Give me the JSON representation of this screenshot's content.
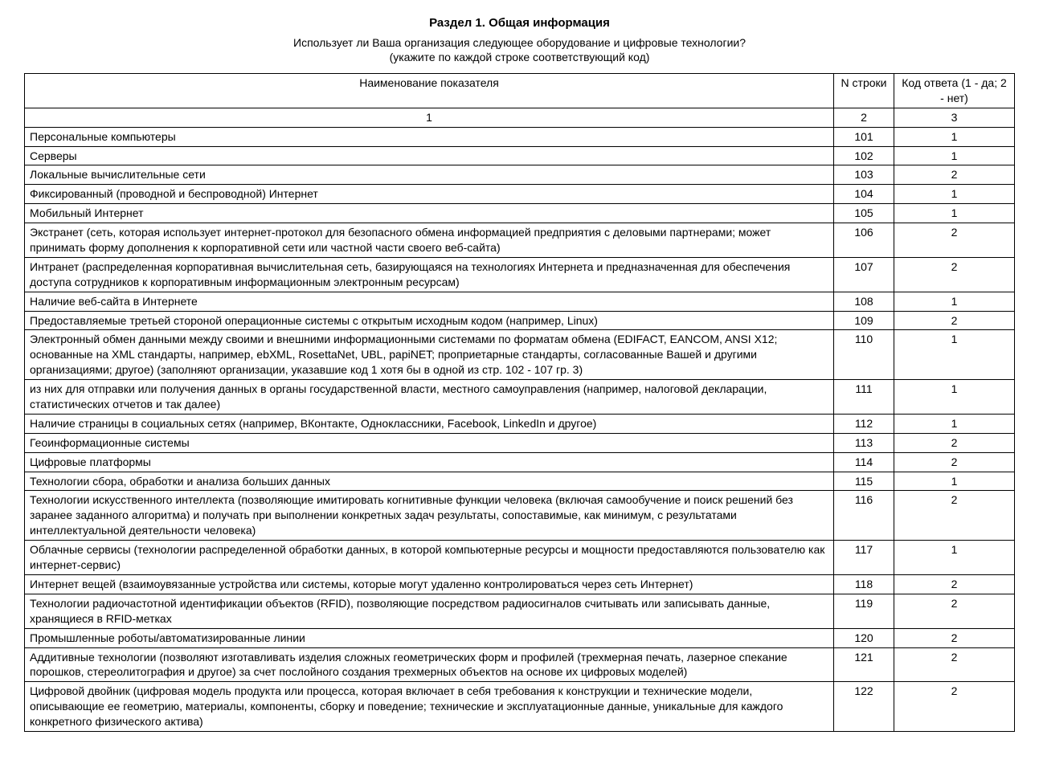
{
  "header": {
    "section_title": "Раздел 1. Общая информация",
    "question": "Использует ли Ваша организация следующее оборудование и цифровые технологии?",
    "instruction": "(укажите по каждой строке соответствующий код)"
  },
  "table": {
    "columns": {
      "name": "Наименование показателя",
      "line": "N строки",
      "code": "Код ответа (1 - да; 2 - нет)"
    },
    "number_row": {
      "name": "1",
      "line": "2",
      "code": "3"
    },
    "rows": [
      {
        "name": "Персональные компьютеры",
        "line": "101",
        "code": "1"
      },
      {
        "name": "Серверы",
        "line": "102",
        "code": "1"
      },
      {
        "name": "Локальные вычислительные сети",
        "line": "103",
        "code": "2"
      },
      {
        "name": "Фиксированный (проводной и беспроводной) Интернет",
        "line": "104",
        "code": "1"
      },
      {
        "name": "Мобильный Интернет",
        "line": "105",
        "code": "1"
      },
      {
        "name": "Экстранет (сеть, которая использует интернет-протокол для безопасного обмена информацией предприятия с деловыми партнерами; может принимать форму дополнения к корпоративной сети или частной части своего веб-сайта)",
        "line": "106",
        "code": "2"
      },
      {
        "name": "Интранет (распределенная корпоративная вычислительная сеть, базирующаяся на технологиях Интернета и предназначенная для обеспечения доступа сотрудников к корпоративным информационным электронным ресурсам)",
        "line": "107",
        "code": "2"
      },
      {
        "name": "Наличие веб-сайта в Интернете",
        "line": "108",
        "code": "1"
      },
      {
        "name": "Предоставляемые третьей стороной операционные системы с открытым исходным кодом (например, Linux)",
        "line": "109",
        "code": "2"
      },
      {
        "name": "Электронный обмен данными между своими и внешними информационными системами по форматам обмена (EDIFACT, EANCOM, ANSI X12; основанные на XML стандарты, например, ebXML, RosettaNet, UBL, papiNET; проприетарные стандарты, согласованные Вашей и другими организациями; другое) (заполняют организации, указавшие код 1 хотя бы в одной из стр. 102 - 107 гр. 3)",
        "line": "110",
        "code": "1"
      },
      {
        "name": "из них для отправки или получения данных в органы государственной власти, местного самоуправления (например, налоговой декларации, статистических отчетов и так далее)",
        "line": "111",
        "code": "1"
      },
      {
        "name": "Наличие страницы в социальных сетях (например, ВКонтакте, Одноклассники, Facebook, LinkedIn и другое)",
        "line": "112",
        "code": "1"
      },
      {
        "name": "Геоинформационные системы",
        "line": "113",
        "code": "2"
      },
      {
        "name": "Цифровые платформы",
        "line": "114",
        "code": "2"
      },
      {
        "name": "Технологии сбора, обработки и анализа больших данных",
        "line": "115",
        "code": "1"
      },
      {
        "name": "Технологии искусственного интеллекта (позволяющие имитировать когнитивные функции человека (включая самообучение и поиск решений без заранее заданного алгоритма) и получать при выполнении конкретных задач результаты, сопоставимые, как минимум, с результатами интеллектуальной деятельности человека)",
        "line": "116",
        "code": "2"
      },
      {
        "name": "Облачные сервисы (технологии распределенной обработки данных, в которой компьютерные ресурсы и мощности предоставляются пользователю как интернет-сервис)",
        "line": "117",
        "code": "1"
      },
      {
        "name": "Интернет вещей (взаимоувязанные устройства или системы, которые могут удаленно контролироваться через сеть Интернет)",
        "line": "118",
        "code": "2"
      },
      {
        "name": "Технологии радиочастотной идентификации объектов (RFID), позволяющие посредством радиосигналов считывать или записывать данные, хранящиеся в RFID-метках",
        "line": "119",
        "code": "2"
      },
      {
        "name": "Промышленные роботы/автоматизированные линии",
        "line": "120",
        "code": "2"
      },
      {
        "name": "Аддитивные технологии (позволяют изготавливать изделия сложных геометрических форм и профилей (трехмерная печать, лазерное спекание порошков, стереолитография и другое) за счет послойного создания трехмерных объектов на основе их цифровых моделей)",
        "line": "121",
        "code": "2"
      },
      {
        "name": "Цифровой двойник (цифровая модель продукта или процесса, которая включает в себя требования к конструкции и технические модели, описывающие ее геометрию, материалы, компоненты, сборку и поведение; технические и эксплуатационные данные, уникальные для каждого конкретного физического актива)",
        "line": "122",
        "code": "2"
      }
    ]
  }
}
